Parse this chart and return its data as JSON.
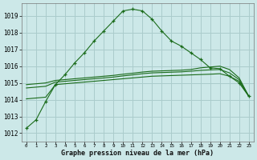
{
  "hours": [
    0,
    1,
    2,
    3,
    4,
    5,
    6,
    7,
    8,
    9,
    10,
    11,
    12,
    13,
    14,
    15,
    16,
    17,
    18,
    19,
    20,
    21,
    22,
    23
  ],
  "line1": [
    1012.3,
    1012.8,
    1013.9,
    1014.9,
    1015.5,
    1016.2,
    1016.8,
    1017.5,
    1018.1,
    1018.7,
    1019.3,
    1019.4,
    1019.3,
    1018.8,
    1018.1,
    1017.5,
    1017.2,
    1016.8,
    1016.4,
    1015.9,
    1015.85,
    1015.4,
    1015.0,
    1014.2
  ],
  "line2": [
    1014.05,
    1014.1,
    1014.15,
    1014.9,
    1014.95,
    1015.0,
    1015.05,
    1015.1,
    1015.15,
    1015.2,
    1015.25,
    1015.3,
    1015.35,
    1015.4,
    1015.42,
    1015.44,
    1015.46,
    1015.48,
    1015.5,
    1015.52,
    1015.55,
    1015.4,
    1015.1,
    1014.2
  ],
  "line3": [
    1014.7,
    1014.75,
    1014.8,
    1015.05,
    1015.1,
    1015.15,
    1015.2,
    1015.25,
    1015.3,
    1015.35,
    1015.42,
    1015.48,
    1015.55,
    1015.6,
    1015.62,
    1015.64,
    1015.66,
    1015.7,
    1015.75,
    1015.78,
    1015.8,
    1015.6,
    1015.2,
    1014.2
  ],
  "line4": [
    1014.9,
    1014.95,
    1015.0,
    1015.15,
    1015.2,
    1015.25,
    1015.3,
    1015.35,
    1015.4,
    1015.45,
    1015.52,
    1015.58,
    1015.65,
    1015.7,
    1015.72,
    1015.74,
    1015.76,
    1015.8,
    1015.9,
    1015.95,
    1016.0,
    1015.8,
    1015.3,
    1014.2
  ],
  "bg_color": "#cce8e8",
  "grid_color": "#aacccc",
  "line_color": "#1a6b1a",
  "xlabel_label": "Graphe pression niveau de la mer (hPa)"
}
